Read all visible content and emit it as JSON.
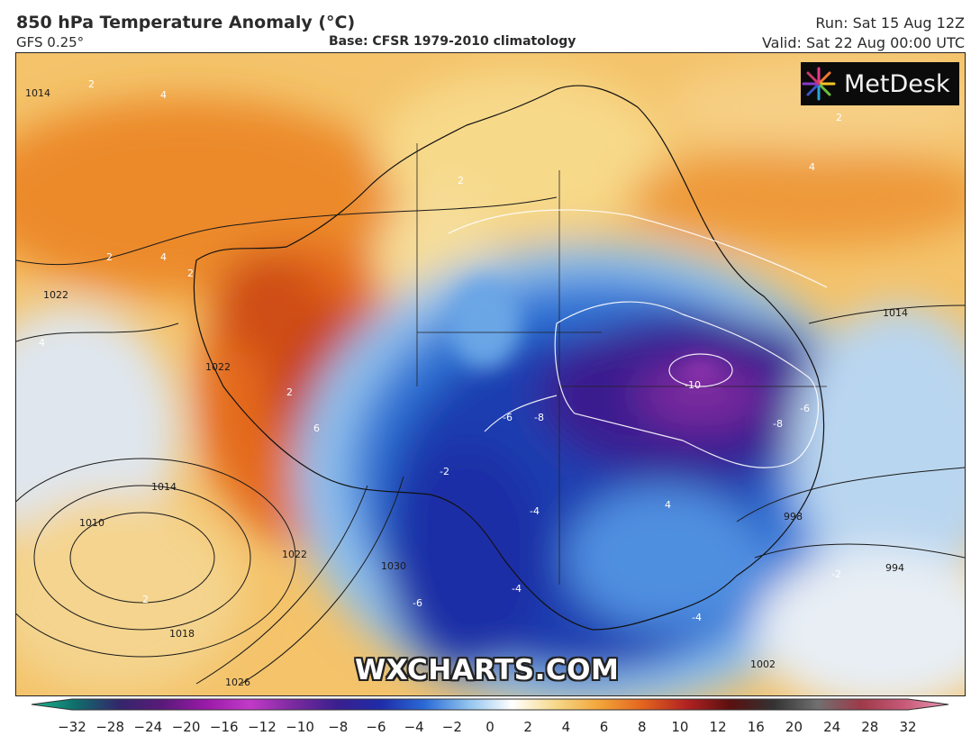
{
  "header": {
    "title": "850 hPa Temperature Anomaly (°C)",
    "model": "GFS 0.25°",
    "base": "Base: CFSR 1979-2010 climatology",
    "run": "Run: Sat 15 Aug 12Z",
    "valid": "Valid: Sat 22 Aug 00:00 UTC"
  },
  "branding": {
    "logo_text": "MetDesk",
    "watermark": "WXCHARTS.COM"
  },
  "colorbar": {
    "ticks": [
      "−32",
      "−28",
      "−24",
      "−20",
      "−16",
      "−12",
      "−10",
      "−8",
      "−6",
      "−4",
      "−2",
      "0",
      "2",
      "4",
      "6",
      "8",
      "10",
      "12",
      "16",
      "20",
      "24",
      "28",
      "32"
    ],
    "colors": [
      "#1db88f",
      "#0f6e6b",
      "#33266b",
      "#5a1a7a",
      "#9a1aa8",
      "#c23ac8",
      "#7a2a9e",
      "#3a1f8f",
      "#1f2ca8",
      "#2a6ad6",
      "#8fc3ee",
      "#ffffff",
      "#f6d98a",
      "#f3a53a",
      "#e2641e",
      "#b22222",
      "#5a1010",
      "#333333",
      "#707070",
      "#9e3a4a",
      "#c85a78",
      "#e99ab5"
    ]
  },
  "map_labels": {
    "anomaly": [
      "2",
      "4",
      "2",
      "2",
      "4",
      "6",
      "2",
      "4",
      "2",
      "4",
      "-6",
      "-8",
      "-10",
      "-8",
      "-6",
      "-6",
      "-4",
      "-4",
      "-2",
      "4",
      "2",
      "-2",
      "-4",
      "2"
    ],
    "isobars": [
      "1014",
      "1022",
      "1022",
      "1014",
      "1010",
      "1018",
      "1022",
      "1026",
      "1014",
      "998",
      "994",
      "1030",
      "1002"
    ]
  }
}
